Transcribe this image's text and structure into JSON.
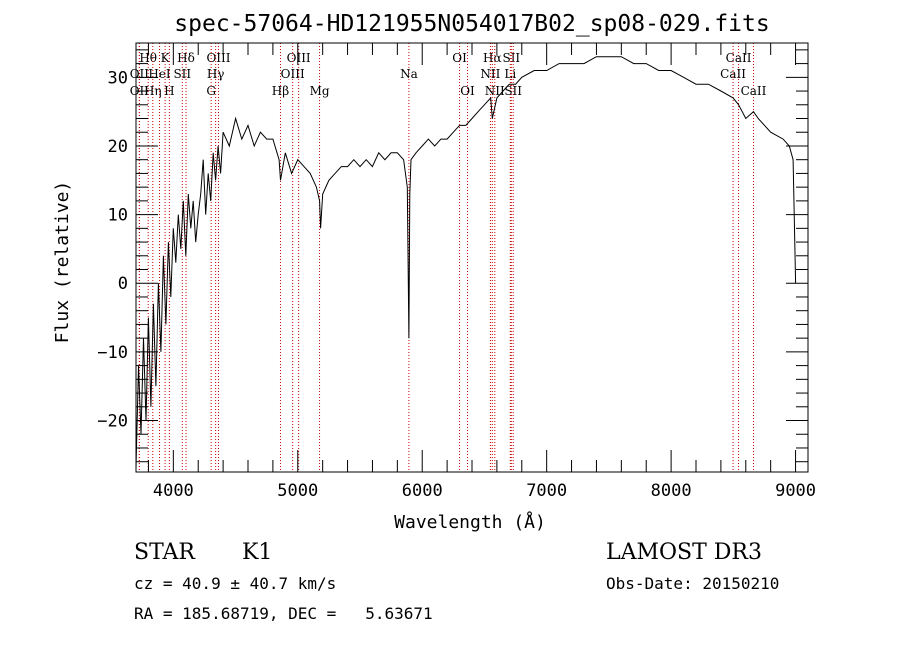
{
  "chart_data": {
    "type": "line",
    "title": "spec-57064-HD121955N054017B02_sp08-029.fits",
    "xlabel": "Wavelength (Å)",
    "ylabel": "Flux (relative)",
    "xlim": [
      3700,
      9100
    ],
    "ylim": [
      -27.5,
      35
    ],
    "xticks": [
      4000,
      5000,
      6000,
      7000,
      8000,
      9000
    ],
    "yticks": [
      -20,
      -10,
      0,
      10,
      20,
      30
    ],
    "grid": false,
    "series": [
      {
        "color": "#000000",
        "x": [
          3700,
          3720,
          3740,
          3760,
          3780,
          3800,
          3820,
          3840,
          3860,
          3880,
          3900,
          3920,
          3940,
          3960,
          3980,
          4000,
          4020,
          4040,
          4060,
          4080,
          4100,
          4120,
          4140,
          4160,
          4180,
          4200,
          4220,
          4240,
          4260,
          4280,
          4300,
          4320,
          4340,
          4360,
          4380,
          4400,
          4450,
          4500,
          4550,
          4600,
          4650,
          4700,
          4750,
          4800,
          4850,
          4861,
          4900,
          4950,
          5000,
          5050,
          5100,
          5150,
          5175,
          5183,
          5200,
          5250,
          5300,
          5350,
          5400,
          5450,
          5500,
          5550,
          5600,
          5650,
          5700,
          5750,
          5800,
          5850,
          5880,
          5893,
          5900,
          5910,
          5950,
          6000,
          6050,
          6100,
          6150,
          6200,
          6250,
          6300,
          6350,
          6400,
          6450,
          6500,
          6550,
          6563,
          6600,
          6650,
          6700,
          6750,
          6800,
          6900,
          7000,
          7100,
          7200,
          7300,
          7400,
          7500,
          7600,
          7700,
          7800,
          7900,
          8000,
          8100,
          8200,
          8300,
          8400,
          8498,
          8542,
          8600,
          8662,
          8700,
          8800,
          8900,
          8950,
          8980,
          9000
        ],
        "y": [
          -27,
          -12,
          -22,
          -8,
          -20,
          -5,
          -18,
          -3,
          -15,
          0,
          -10,
          4,
          -6,
          6,
          -2,
          8,
          3,
          10,
          5,
          12,
          4,
          13,
          8,
          12,
          6,
          10,
          13,
          18,
          10,
          16,
          12,
          19,
          15,
          20,
          16,
          22,
          20,
          24,
          21,
          23,
          20,
          22,
          21,
          21,
          18,
          15,
          19,
          16,
          18,
          17,
          16,
          14,
          12,
          8,
          13,
          15,
          16,
          17,
          17,
          18,
          17,
          18,
          17,
          19,
          18,
          19,
          19,
          18,
          14,
          -8,
          13,
          18,
          19,
          20,
          21,
          20,
          21,
          21,
          22,
          23,
          23,
          24,
          25,
          26,
          27,
          24,
          27,
          28,
          29,
          29,
          30,
          31,
          31,
          32,
          32,
          32,
          33,
          33,
          33,
          32,
          32,
          31,
          31,
          30,
          29,
          29,
          28,
          27,
          26,
          24,
          25,
          24,
          22,
          21,
          20,
          18,
          0
        ]
      }
    ],
    "spectral_lines": [
      {
        "name": "Hθ",
        "wavelength": 3798,
        "row": 1
      },
      {
        "name": "Hη",
        "wavelength": 3835,
        "row": 3
      },
      {
        "name": "OII",
        "wavelength": 3727,
        "row": 2
      },
      {
        "name": "OII",
        "wavelength": 3727,
        "row": 3
      },
      {
        "name": "HeI",
        "wavelength": 3889,
        "row": 2
      },
      {
        "name": "K",
        "wavelength": 3934,
        "row": 1
      },
      {
        "name": "H",
        "wavelength": 3968,
        "row": 3
      },
      {
        "name": "SII",
        "wavelength": 4072,
        "row": 2
      },
      {
        "name": "Hδ",
        "wavelength": 4102,
        "row": 1
      },
      {
        "name": "OIII",
        "wavelength": 4363,
        "row": 1
      },
      {
        "name": "Hγ",
        "wavelength": 4340,
        "row": 2
      },
      {
        "name": "G",
        "wavelength": 4304,
        "row": 3
      },
      {
        "name": "Hβ",
        "wavelength": 4861,
        "row": 3
      },
      {
        "name": "OIII",
        "wavelength": 5007,
        "row": 1
      },
      {
        "name": "OIII",
        "wavelength": 4959,
        "row": 2
      },
      {
        "name": "Mg",
        "wavelength": 5175,
        "row": 3
      },
      {
        "name": "Na",
        "wavelength": 5893,
        "row": 2
      },
      {
        "name": "OI",
        "wavelength": 6300,
        "row": 1
      },
      {
        "name": "OI",
        "wavelength": 6364,
        "row": 3
      },
      {
        "name": "Hα",
        "wavelength": 6563,
        "row": 1
      },
      {
        "name": "NII",
        "wavelength": 6548,
        "row": 2
      },
      {
        "name": "NII",
        "wavelength": 6583,
        "row": 3
      },
      {
        "name": "SII",
        "wavelength": 6716,
        "row": 1
      },
      {
        "name": "Li",
        "wavelength": 6708,
        "row": 2
      },
      {
        "name": "SII",
        "wavelength": 6731,
        "row": 3
      },
      {
        "name": "CaII",
        "wavelength": 8542,
        "row": 1
      },
      {
        "name": "CaII",
        "wavelength": 8498,
        "row": 2
      },
      {
        "name": "CaII",
        "wavelength": 8662,
        "row": 3
      }
    ],
    "spectral_line_color": "#cc0000"
  },
  "info": {
    "object_class": "STAR",
    "subclass": "K1",
    "survey": "LAMOST DR3",
    "cz": "cz = 40.9 ± 40.7 km/s",
    "obs_date": "Obs-Date: 20150210",
    "coords": "RA = 185.68719, DEC =   5.63671"
  }
}
